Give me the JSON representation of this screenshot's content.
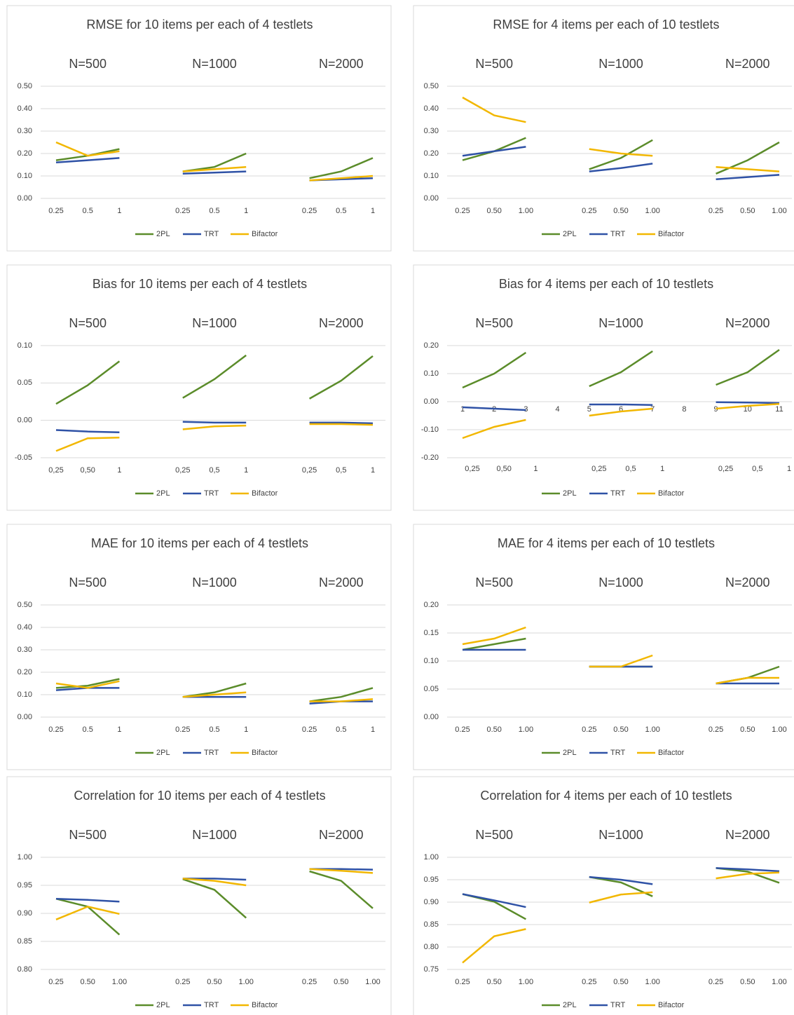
{
  "chart_data": [
    {
      "type": "line",
      "title": "RMSE for 10 items per each of 4 testlets",
      "groups": [
        "N=500",
        "N=1000",
        "N=2000"
      ],
      "categories": [
        "0.25",
        "0.5",
        "1",
        null,
        "0.25",
        "0.5",
        "1",
        null,
        "0.25",
        "0.5",
        "1"
      ],
      "series": [
        {
          "name": "2PL",
          "color": "#5b8c2a",
          "values": [
            0.17,
            0.19,
            0.22,
            null,
            0.12,
            0.14,
            0.2,
            null,
            0.09,
            0.12,
            0.18
          ]
        },
        {
          "name": "TRT",
          "color": "#2f52a6",
          "values": [
            0.16,
            0.17,
            0.18,
            null,
            0.11,
            0.115,
            0.12,
            null,
            0.08,
            0.085,
            0.09
          ]
        },
        {
          "name": "Bifactor",
          "color": "#f2b700",
          "values": [
            0.25,
            0.19,
            0.21,
            null,
            0.12,
            0.13,
            0.14,
            null,
            0.08,
            0.09,
            0.1
          ]
        }
      ],
      "ylim": [
        0,
        0.5
      ],
      "yticks": [
        {
          "value": 0,
          "label": "0.00"
        },
        {
          "value": 0.1,
          "label": "0.10"
        },
        {
          "value": 0.2,
          "label": "0.20"
        },
        {
          "value": 0.3,
          "label": "0.30"
        },
        {
          "value": 0.4,
          "label": "0.40"
        },
        {
          "value": 0.5,
          "label": "0.50"
        }
      ],
      "grid": true
    },
    {
      "type": "line",
      "title": "RMSE for 4 items per each of 10 testlets",
      "groups": [
        "N=500",
        "N=1000",
        "N=2000"
      ],
      "categories": [
        "0.25",
        "0.50",
        "1.00",
        null,
        "0.25",
        "0.50",
        "1.00",
        null,
        "0.25",
        "0.50",
        "1.00"
      ],
      "series": [
        {
          "name": "2PL",
          "color": "#5b8c2a",
          "values": [
            0.17,
            0.21,
            0.27,
            null,
            0.13,
            0.18,
            0.26,
            null,
            0.11,
            0.17,
            0.25
          ]
        },
        {
          "name": "TRT",
          "color": "#2f52a6",
          "values": [
            0.19,
            0.21,
            0.23,
            null,
            0.12,
            0.135,
            0.155,
            null,
            0.085,
            0.095,
            0.105
          ]
        },
        {
          "name": "Bifactor",
          "color": "#f2b700",
          "values": [
            0.45,
            0.37,
            0.34,
            null,
            0.22,
            0.2,
            0.19,
            null,
            0.14,
            0.13,
            0.12
          ]
        }
      ],
      "ylim": [
        0,
        0.5
      ],
      "yticks": [
        {
          "value": 0,
          "label": "0.00"
        },
        {
          "value": 0.1,
          "label": "0.10"
        },
        {
          "value": 0.2,
          "label": "0.20"
        },
        {
          "value": 0.3,
          "label": "0.30"
        },
        {
          "value": 0.4,
          "label": "0.40"
        },
        {
          "value": 0.5,
          "label": "0.50"
        }
      ],
      "grid": true
    },
    {
      "type": "line",
      "title": "Bias for 10 items per each of 4 testlets",
      "groups": [
        "N=500",
        "N=1000",
        "N=2000"
      ],
      "categories": [
        "0,25",
        "0,50",
        "1",
        null,
        "0,25",
        "0,5",
        "1",
        null,
        "0,25",
        "0,5",
        "1"
      ],
      "series": [
        {
          "name": "2PL",
          "color": "#5b8c2a",
          "values": [
            0.022,
            0.047,
            0.079,
            null,
            0.03,
            0.055,
            0.087,
            null,
            0.029,
            0.053,
            0.086
          ]
        },
        {
          "name": "TRT",
          "color": "#2f52a6",
          "values": [
            -0.013,
            -0.015,
            -0.016,
            null,
            -0.002,
            -0.003,
            -0.003,
            null,
            -0.003,
            -0.003,
            -0.004
          ]
        },
        {
          "name": "Bifactor",
          "color": "#f2b700",
          "values": [
            -0.041,
            -0.024,
            -0.023,
            null,
            -0.012,
            -0.008,
            -0.007,
            null,
            -0.005,
            -0.005,
            -0.006
          ]
        }
      ],
      "ylim": [
        -0.05,
        0.1
      ],
      "yticks": [
        {
          "value": -0.05,
          "label": "-0.05"
        },
        {
          "value": 0,
          "label": "0.00"
        },
        {
          "value": 0.05,
          "label": "0.05"
        },
        {
          "value": 0.1,
          "label": "0.10"
        }
      ],
      "grid": true
    },
    {
      "type": "line",
      "title": "Bias for 4 items per each of 10 testlets",
      "groups": [
        "N=500",
        "N=1000",
        "N=2000"
      ],
      "categories": [
        "1",
        "2",
        "3",
        "4",
        "5",
        "6",
        "7",
        "8",
        "9",
        "10",
        "11"
      ],
      "sub_categories": [
        "0,25",
        "0,50",
        "1",
        null,
        "0,25",
        "0,5",
        "1",
        null,
        "0,25",
        "0,5",
        "1"
      ],
      "series": [
        {
          "name": "2PL",
          "color": "#5b8c2a",
          "values": [
            0.05,
            0.1,
            0.175,
            null,
            0.055,
            0.105,
            0.18,
            null,
            0.06,
            0.105,
            0.185
          ]
        },
        {
          "name": "TRT",
          "color": "#2f52a6",
          "values": [
            -0.02,
            -0.025,
            -0.03,
            null,
            -0.01,
            -0.01,
            -0.012,
            null,
            -0.002,
            -0.003,
            -0.005
          ]
        },
        {
          "name": "Bifactor",
          "color": "#f2b700",
          "values": [
            -0.13,
            -0.09,
            -0.065,
            null,
            -0.05,
            -0.035,
            -0.025,
            null,
            -0.025,
            -0.015,
            -0.008
          ]
        }
      ],
      "ylim": [
        -0.2,
        0.2
      ],
      "yticks": [
        {
          "value": -0.2,
          "label": "-0.20"
        },
        {
          "value": -0.1,
          "label": "-0.10"
        },
        {
          "value": 0,
          "label": "0.00"
        },
        {
          "value": 0.1,
          "label": "0.10"
        },
        {
          "value": 0.2,
          "label": "0.20"
        }
      ],
      "grid": true
    },
    {
      "type": "line",
      "title": "MAE for 10 items per each of 4 testlets",
      "groups": [
        "N=500",
        "N=1000",
        "N=2000"
      ],
      "categories": [
        "0.25",
        "0.5",
        "1",
        null,
        "0.25",
        "0.5",
        "1",
        null,
        "0.25",
        "0.5",
        "1"
      ],
      "series": [
        {
          "name": "2PL",
          "color": "#5b8c2a",
          "values": [
            0.13,
            0.14,
            0.17,
            null,
            0.09,
            0.11,
            0.15,
            null,
            0.07,
            0.09,
            0.13
          ]
        },
        {
          "name": "TRT",
          "color": "#2f52a6",
          "values": [
            0.12,
            0.13,
            0.13,
            null,
            0.09,
            0.09,
            0.09,
            null,
            0.06,
            0.07,
            0.07
          ]
        },
        {
          "name": "Bifactor",
          "color": "#f2b700",
          "values": [
            0.15,
            0.13,
            0.16,
            null,
            0.09,
            0.1,
            0.11,
            null,
            0.07,
            0.07,
            0.08
          ]
        }
      ],
      "ylim": [
        0,
        0.5
      ],
      "yticks": [
        {
          "value": 0,
          "label": "0.00"
        },
        {
          "value": 0.1,
          "label": "0.10"
        },
        {
          "value": 0.2,
          "label": "0.20"
        },
        {
          "value": 0.3,
          "label": "0.30"
        },
        {
          "value": 0.4,
          "label": "0.40"
        },
        {
          "value": 0.5,
          "label": "0.50"
        }
      ],
      "grid": true
    },
    {
      "type": "line",
      "title": "MAE for 4 items per each of 10 testlets",
      "groups": [
        "N=500",
        "N=1000",
        "N=2000"
      ],
      "categories": [
        "0.25",
        "0.50",
        "1.00",
        null,
        "0.25",
        "0.50",
        "1.00",
        null,
        "0.25",
        "0.50",
        "1.00"
      ],
      "series": [
        {
          "name": "2PL",
          "color": "#5b8c2a",
          "values": [
            0.12,
            0.13,
            0.14,
            null,
            0.09,
            0.09,
            0.09,
            null,
            0.06,
            0.07,
            0.09
          ]
        },
        {
          "name": "TRT",
          "color": "#2f52a6",
          "values": [
            0.12,
            0.12,
            0.12,
            null,
            0.09,
            0.09,
            0.09,
            null,
            0.06,
            0.06,
            0.06
          ]
        },
        {
          "name": "Bifactor",
          "color": "#f2b700",
          "values": [
            0.13,
            0.14,
            0.16,
            null,
            0.09,
            0.09,
            0.11,
            null,
            0.06,
            0.07,
            0.07
          ]
        }
      ],
      "ylim": [
        0,
        0.2
      ],
      "yticks": [
        {
          "value": 0,
          "label": "0.00"
        },
        {
          "value": 0.05,
          "label": "0.05"
        },
        {
          "value": 0.1,
          "label": "0.10"
        },
        {
          "value": 0.15,
          "label": "0.15"
        },
        {
          "value": 0.2,
          "label": "0.20"
        }
      ],
      "grid": true
    },
    {
      "type": "line",
      "title": "Correlation for 10 items per each of 4 testlets",
      "groups": [
        "N=500",
        "N=1000",
        "N=2000"
      ],
      "categories": [
        "0.25",
        "0.50",
        "1.00",
        null,
        "0.25",
        "0.50",
        "1.00",
        null,
        "0.25",
        "0.50",
        "1.00"
      ],
      "series": [
        {
          "name": "2PL",
          "color": "#5b8c2a",
          "values": [
            0.926,
            0.912,
            0.862,
            null,
            0.961,
            0.942,
            0.892,
            null,
            0.975,
            0.958,
            0.909
          ]
        },
        {
          "name": "TRT",
          "color": "#2f52a6",
          "values": [
            0.926,
            0.924,
            0.921,
            null,
            0.962,
            0.962,
            0.96,
            null,
            0.979,
            0.979,
            0.978
          ]
        },
        {
          "name": "Bifactor",
          "color": "#f2b700",
          "values": [
            0.889,
            0.912,
            0.899,
            null,
            0.962,
            0.958,
            0.95,
            null,
            0.979,
            0.976,
            0.972
          ]
        }
      ],
      "ylim": [
        0.8,
        1.0
      ],
      "yticks": [
        {
          "value": 0.8,
          "label": "0.80"
        },
        {
          "value": 0.85,
          "label": "0.85"
        },
        {
          "value": 0.9,
          "label": "0.90"
        },
        {
          "value": 0.95,
          "label": "0.95"
        },
        {
          "value": 1.0,
          "label": "1.00"
        }
      ],
      "grid": true
    },
    {
      "type": "line",
      "title": "Correlation for 4 items per each of 10 testlets",
      "groups": [
        "N=500",
        "N=1000",
        "N=2000"
      ],
      "categories": [
        "0.25",
        "0.50",
        "1.00",
        null,
        "0.25",
        "0.50",
        "1.00",
        null,
        "0.25",
        "0.50",
        "1.00"
      ],
      "series": [
        {
          "name": "2PL",
          "color": "#5b8c2a",
          "values": [
            0.918,
            0.901,
            0.862,
            null,
            0.956,
            0.944,
            0.913,
            null,
            0.976,
            0.968,
            0.943
          ]
        },
        {
          "name": "TRT",
          "color": "#2f52a6",
          "values": [
            0.918,
            0.904,
            0.889,
            null,
            0.956,
            0.95,
            0.94,
            null,
            0.976,
            0.973,
            0.969
          ]
        },
        {
          "name": "Bifactor",
          "color": "#f2b700",
          "values": [
            0.765,
            0.824,
            0.84,
            null,
            0.899,
            0.917,
            0.922,
            null,
            0.953,
            0.963,
            0.966
          ]
        }
      ],
      "ylim": [
        0.75,
        1.0
      ],
      "yticks": [
        {
          "value": 0.75,
          "label": "0.75"
        },
        {
          "value": 0.8,
          "label": "0.80"
        },
        {
          "value": 0.85,
          "label": "0.85"
        },
        {
          "value": 0.9,
          "label": "0.90"
        },
        {
          "value": 0.95,
          "label": "0.95"
        },
        {
          "value": 1.0,
          "label": "1.00"
        }
      ],
      "grid": true
    }
  ]
}
